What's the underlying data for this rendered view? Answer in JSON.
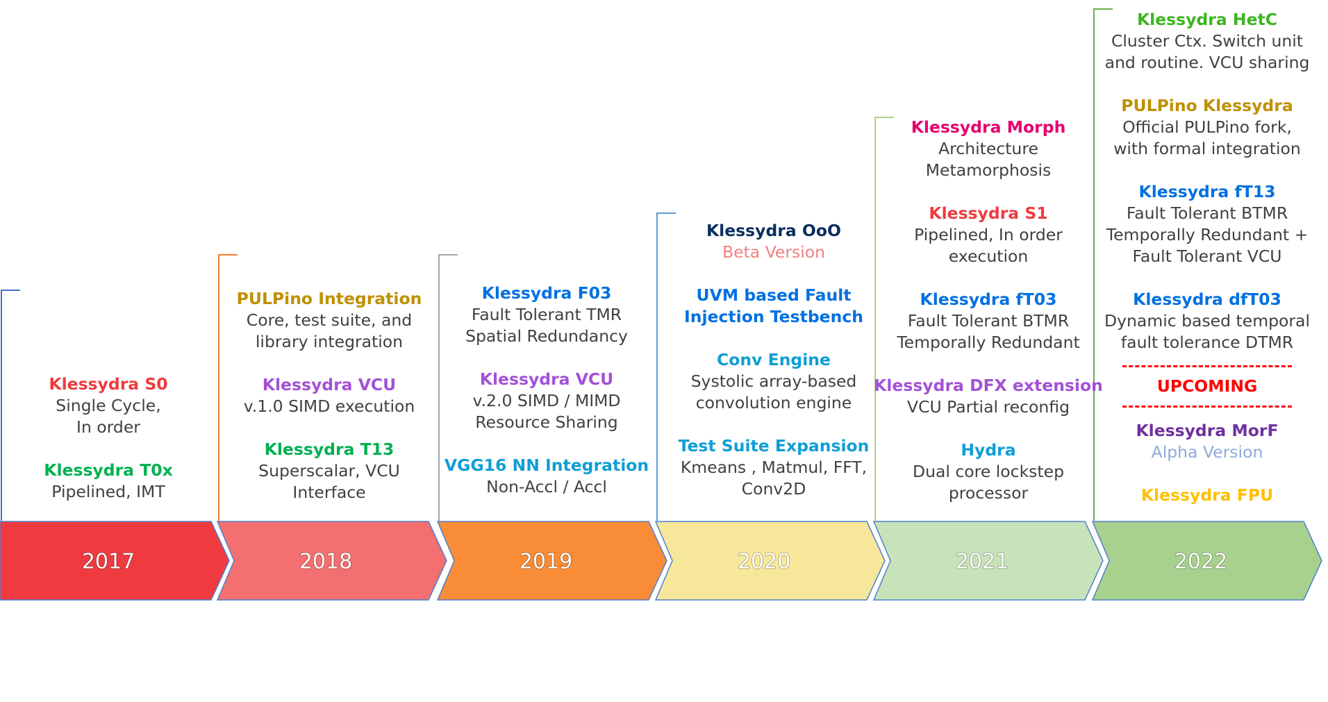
{
  "years": [
    {
      "label": "2017",
      "color": "#ef3b3f",
      "bracket": "#4472c4",
      "items": [
        {
          "title": "Klessydra S0",
          "title_color": "#ef3b3f",
          "desc": "Single Cycle,\nIn order"
        },
        {
          "title": "Klessydra T0x",
          "title_color": "#00b050",
          "desc": "Pipelined, IMT"
        }
      ]
    },
    {
      "label": "2018",
      "color": "#f46f6f",
      "bracket": "#ed7d31",
      "items": [
        {
          "title": "PULPino Integration",
          "title_color": "#bf9000",
          "desc": "Core, test suite, and\nlibrary integration"
        },
        {
          "title": "Klessydra VCU",
          "title_color": "#a351d6",
          "desc": "v.1.0 SIMD execution"
        },
        {
          "title": "Klessydra T13",
          "title_color": "#00b050",
          "desc": "Superscalar, VCU\nInterface"
        }
      ]
    },
    {
      "label": "2019",
      "color": "#f98c36",
      "bracket": "#a5a5a5",
      "items": [
        {
          "title": "Klessydra F03",
          "title_color": "#0070e0",
          "desc": "Fault Tolerant TMR\nSpatial Redundancy"
        },
        {
          "title": "Klessydra VCU",
          "title_color": "#a351d6",
          "desc": "v.2.0 SIMD / MIMD\nResource Sharing"
        },
        {
          "title": "VGG16 NN Integration",
          "title_color": "#0f9ed5",
          "desc": "Non-Accl / Accl"
        }
      ]
    },
    {
      "label": "2020",
      "color": "#f6e79a",
      "bracket": "#5b9bd5",
      "items": [
        {
          "title": "Klessydra OoO",
          "title_color": "#0b2f5e",
          "desc": "Beta Version",
          "desc_color": "#f08080"
        },
        {
          "title": "UVM based Fault\nInjection Testbench",
          "title_color": "#0070e0",
          "desc": ""
        },
        {
          "title": "Conv Engine",
          "title_color": "#0f9ed5",
          "desc": "Systolic array-based\nconvolution engine"
        },
        {
          "title": "Test Suite Expansion",
          "title_color": "#0f9ed5",
          "desc": "Kmeans , Matmul, FFT,\nConv2D"
        }
      ]
    },
    {
      "label": "2021",
      "color": "#c8e2b9",
      "bracket": "#a9d18e",
      "items": [
        {
          "title": "Klessydra Morph",
          "title_color": "#e6006e",
          "desc": "Architecture\nMetamorphosis"
        },
        {
          "title": "Klessydra S1",
          "title_color": "#ef3b3f",
          "desc": "Pipelined, In order\nexecution"
        },
        {
          "title": "Klessydra fT03",
          "title_color": "#0070e0",
          "desc": "Fault Tolerant BTMR\nTemporally Redundant"
        },
        {
          "title": "Klessydra DFX extension",
          "title_color": "#a351d6",
          "desc": "VCU Partial reconfig"
        },
        {
          "title": "Hydra",
          "title_color": "#0f9ed5",
          "desc": "Dual core lockstep\nprocessor"
        }
      ]
    },
    {
      "label": "2022",
      "color": "#a8d18d",
      "bracket": "#70ad47",
      "items": [
        {
          "title": "Klessydra HetC",
          "title_color": "#3cb521",
          "desc": "Cluster Ctx. Switch unit\nand routine. VCU sharing"
        },
        {
          "title": "PULPino Klessydra",
          "title_color": "#bf9000",
          "desc": "Official PULPino fork,\nwith formal integration"
        },
        {
          "title": "Klessydra fT13",
          "title_color": "#0070e0",
          "desc": "Fault Tolerant BTMR\nTemporally Redundant +\nFault Tolerant VCU"
        },
        {
          "title": "Klessydra dfT03",
          "title_color": "#0070e0",
          "desc": "Dynamic based temporal\nfault tolerance DTMR"
        }
      ],
      "upcoming_label": "UPCOMING",
      "upcoming": [
        {
          "title": "Klessydra MorF",
          "title_color": "#7030a0",
          "desc": "Alpha Version",
          "desc_color": "#8eaadb"
        },
        {
          "title": "Klessydra FPU",
          "title_color": "#ffc000",
          "desc": ""
        }
      ]
    }
  ]
}
